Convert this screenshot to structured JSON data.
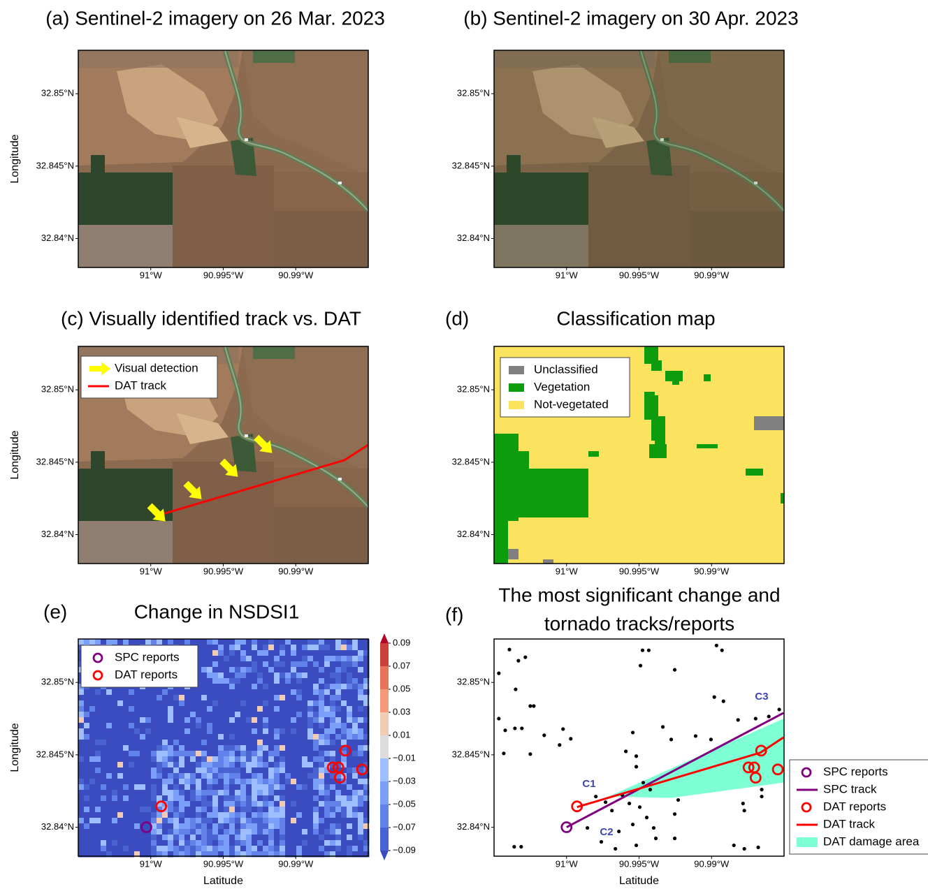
{
  "chart_data": [
    {
      "type": "image",
      "title": "(a) Sentinel-2 imagery on 26 Mar. 2023",
      "ylabel": "Longitude",
      "xlim": [
        -91.005,
        -90.985
      ],
      "ylim": [
        32.838,
        32.853
      ],
      "xticks": [
        {
          "value": -91,
          "label": "91°W"
        },
        {
          "value": -90.995,
          "label": "90.995°W"
        },
        {
          "value": -90.99,
          "label": "90.99°W"
        }
      ],
      "yticks": [
        {
          "value": 32.84,
          "label": "32.84°N"
        },
        {
          "value": 32.845,
          "label": "32.845°N"
        },
        {
          "value": 32.85,
          "label": "32.85°N"
        }
      ]
    },
    {
      "type": "image",
      "title": "(b) Sentinel-2 imagery on 30 Apr. 2023",
      "xlim": [
        -91.005,
        -90.985
      ],
      "ylim": [
        32.838,
        32.853
      ],
      "xticks": [
        {
          "value": -91,
          "label": "91°W"
        },
        {
          "value": -90.995,
          "label": "90.995°W"
        },
        {
          "value": -90.99,
          "label": "90.99°W"
        }
      ],
      "yticks": [
        {
          "value": 32.84,
          "label": "32.84°N"
        },
        {
          "value": 32.845,
          "label": "32.845°N"
        },
        {
          "value": 32.85,
          "label": "32.85°N"
        }
      ]
    },
    {
      "type": "image",
      "title": "(c) Visually identified track vs. DAT",
      "ylabel": "Longitude",
      "xlim": [
        -91.005,
        -90.985
      ],
      "ylim": [
        32.838,
        32.853
      ],
      "xticks": [
        {
          "value": -91,
          "label": "91°W"
        },
        {
          "value": -90.995,
          "label": "90.995°W"
        },
        {
          "value": -90.99,
          "label": "90.99°W"
        }
      ],
      "yticks": [
        {
          "value": 32.84,
          "label": "32.84°N"
        },
        {
          "value": 32.845,
          "label": "32.845°N"
        },
        {
          "value": 32.85,
          "label": "32.85°N"
        }
      ],
      "legend": "upper left",
      "series": [
        {
          "name": "Visual detection",
          "color": "#ffff00",
          "marker": "arrow",
          "x": [
            -90.99899,
            -90.99649,
            -90.99399,
            -90.99163
          ],
          "y": [
            32.84091,
            32.84245,
            32.84399,
            32.84563
          ]
        },
        {
          "name": "DAT track",
          "color": "#ff0000",
          "marker": "line",
          "x": [
            -90.99928,
            -90.98663,
            -90.985
          ],
          "y": [
            32.84139,
            32.84515,
            32.8462
          ]
        }
      ]
    },
    {
      "type": "classification",
      "label": "(d)",
      "title": "Classification map",
      "xlim": [
        -91.005,
        -90.985
      ],
      "ylim": [
        32.838,
        32.853
      ],
      "xticks": [
        {
          "value": -91,
          "label": "91°W"
        },
        {
          "value": -90.995,
          "label": "90.995°W"
        },
        {
          "value": -90.99,
          "label": "90.99°W"
        }
      ],
      "yticks": [
        {
          "value": 32.84,
          "label": "32.84°N"
        },
        {
          "value": 32.845,
          "label": "32.845°N"
        },
        {
          "value": 32.85,
          "label": "32.85°N"
        }
      ],
      "legend": "upper left",
      "categories": [
        "Unclassified",
        "Vegetation",
        "Not-vegetated"
      ],
      "colors": [
        "#808080",
        "#0d9c0d",
        "#fce35f"
      ]
    },
    {
      "type": "heatmap",
      "label": "(e)",
      "title": "Change in NSDSI1",
      "ylabel": "Longitude",
      "xlabel": "Latitude",
      "xlim": [
        -91.005,
        -90.985
      ],
      "ylim": [
        32.838,
        32.853
      ],
      "xticks": [
        {
          "value": -91,
          "label": "91°W"
        },
        {
          "value": -90.995,
          "label": "90.995°W"
        },
        {
          "value": -90.99,
          "label": "90.99°W"
        }
      ],
      "yticks": [
        {
          "value": 32.84,
          "label": "32.84°N"
        },
        {
          "value": 32.845,
          "label": "32.845°N"
        },
        {
          "value": 32.85,
          "label": "32.85°N"
        }
      ],
      "colorbar": {
        "ticks": [
          {
            "value": -0.09,
            "label": "−0.09"
          },
          {
            "value": -0.07,
            "label": "−0.07"
          },
          {
            "value": -0.05,
            "label": "−0.05"
          },
          {
            "value": -0.03,
            "label": "−0.03"
          },
          {
            "value": -0.01,
            "label": "−0.01"
          },
          0.01,
          0.03,
          0.05,
          0.07,
          0.09
        ],
        "colors": [
          "#3b4cc0",
          "#4a63d3",
          "#6282ea",
          "#7b9ff9",
          "#9ebeff",
          "#dddcdc",
          "#f2cbb7",
          "#f49a7b",
          "#e7745b",
          "#cc403a",
          "#b40426"
        ]
      },
      "legend": "upper left",
      "series": [
        {
          "name": "SPC reports",
          "color": "#800080",
          "marker": "ring",
          "x": [
            -91.0003
          ],
          "y": [
            32.84
          ]
        },
        {
          "name": "DAT reports",
          "color": "#ff0000",
          "marker": "ring",
          "x": [
            -90.99928,
            -90.98658,
            -90.98745,
            -90.98706,
            -90.98696,
            -90.98543
          ],
          "y": [
            32.84144,
            32.84529,
            32.84413,
            32.84413,
            32.84342,
            32.84399
          ]
        }
      ]
    },
    {
      "type": "scatter",
      "label": "(f)",
      "title": [
        "The most significant change and",
        "tornado tracks/reports"
      ],
      "xlabel": "Latitude",
      "xlim": [
        -91.005,
        -90.985
      ],
      "ylim": [
        32.838,
        32.853
      ],
      "xticks": [
        {
          "value": -91,
          "label": "91°W"
        },
        {
          "value": -90.995,
          "label": "90.995°W"
        },
        {
          "value": -90.99,
          "label": "90.99°W"
        }
      ],
      "yticks": [
        {
          "value": 32.84,
          "label": "32.84°N"
        },
        {
          "value": 32.845,
          "label": "32.845°N"
        },
        {
          "value": 32.85,
          "label": "32.85°N"
        }
      ],
      "legend": "outside right",
      "annotations": [
        "C1",
        "C2",
        "C3"
      ],
      "series": [
        {
          "color": "#000000",
          "marker": "dot",
          "x": [
            -91.00394,
            -91.00467,
            -91.00332,
            -91.00284,
            -91.00351,
            -91.0025,
            -91.00226,
            -91.00467,
            -91.00423,
            -91.00356,
            -91.00308,
            -91.00154,
            -91.00024,
            -90.99971,
            -91.00048,
            -91.0025,
            -91.00433,
            -90.99476,
            -90.99433,
            -90.9949,
            -90.99254,
            -90.98966,
            -90.98928,
            -90.98981,
            -90.98918,
            -90.98817,
            -90.99543,
            -90.99336,
            -90.99278,
            -90.9911,
            -90.99004,
            -90.98696,
            -90.98605,
            -90.98533,
            -90.99591,
            -90.99519,
            -90.99519,
            -90.99798,
            -90.99731,
            -90.99687,
            -90.99615,
            -90.99567,
            -90.99495,
            -90.99447,
            -90.99543,
            -90.99399,
            -90.99384,
            -90.99519,
            -90.99663,
            -90.9976,
            -90.99254,
            -90.99254,
            -90.9923,
            -91.00361,
            -91.00313,
            -90.98846,
            -90.98774,
            -90.98678,
            -90.98783,
            -90.98774,
            -90.98654,
            -90.99856,
            -90.99639,
            -90.99471,
            -90.99423,
            -90.98654
          ],
          "y": [
            32.85227,
            32.85063,
            32.8515,
            32.85174,
            32.84952,
            32.84837,
            32.84837,
            32.8475,
            32.84669,
            32.84683,
            32.84683,
            32.84635,
            32.84678,
            32.84611,
            32.84568,
            32.84505,
            32.8451,
            32.85222,
            32.85222,
            32.85116,
            32.85087,
            32.85255,
            32.85222,
            32.84899,
            32.8487,
            32.84741,
            32.84654,
            32.84693,
            32.84606,
            32.8463,
            32.84606,
            32.8475,
            32.84765,
            32.84813,
            32.84524,
            32.84491,
            32.84418,
            32.84212,
            32.84173,
            32.84115,
            32.84221,
            32.84164,
            32.84139,
            32.84067,
            32.84019,
            32.83995,
            32.83923,
            32.83875,
            32.83851,
            32.83899,
            32.83923,
            32.84091,
            32.84188,
            32.83865,
            32.83865,
            32.83875,
            32.83851,
            32.83861,
            32.84164,
            32.84115,
            32.84212,
            32.83995,
            32.83971,
            32.84308,
            32.8426,
            32.8426
          ]
        },
        {
          "name": "SPC reports",
          "color": "#800080",
          "marker": "ring",
          "x": [
            -91.0
          ],
          "y": [
            32.84
          ]
        },
        {
          "name": "SPC track",
          "color": "#800080",
          "marker": "line",
          "x": [
            -91.0,
            -90.98504
          ],
          "y": [
            32.84,
            32.84789
          ]
        },
        {
          "name": "DAT reports",
          "color": "#ff0000",
          "marker": "ring",
          "x": [
            -90.99928,
            -90.98658,
            -90.98745,
            -90.98706,
            -90.98696,
            -90.98543
          ],
          "y": [
            32.84144,
            32.84529,
            32.84413,
            32.84413,
            32.84342,
            32.84399
          ]
        },
        {
          "name": "DAT track",
          "color": "#ff0000",
          "marker": "line",
          "x": [
            -90.99928,
            -90.98663,
            -90.98504
          ],
          "y": [
            32.84139,
            32.84515,
            32.8462
          ]
        },
        {
          "name": "DAT damage area",
          "color": "#7fffd4",
          "marker": "area",
          "x": [
            -90.99711,
            -90.98504,
            -90.98504,
            -90.99278
          ],
          "y": [
            32.84212,
            32.8475,
            32.84308,
            32.84202
          ]
        }
      ]
    }
  ]
}
